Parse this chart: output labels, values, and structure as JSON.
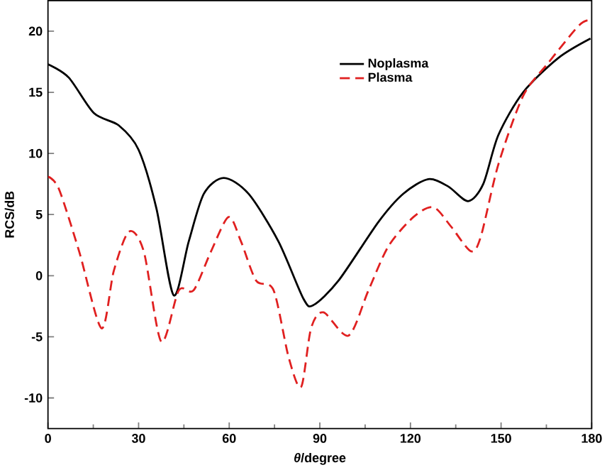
{
  "chart_data": {
    "type": "line",
    "xlabel": "*θ*/degree",
    "ylabel": "RCS/dB",
    "xlim": [
      0,
      180
    ],
    "ylim": [
      -12.5,
      22.5
    ],
    "xticks": [
      0,
      30,
      60,
      90,
      120,
      150,
      180
    ],
    "yticks": [
      -10,
      -5,
      0,
      5,
      10,
      15,
      20
    ],
    "grid": false,
    "legend": "top",
    "marker": "none",
    "series": [
      {
        "name": "Noplasma",
        "color": "#000000",
        "line_style": "solid",
        "x": [
          0,
          6.9,
          15.2,
          23.4,
          30,
          35.9,
          41.6,
          46.6,
          51.6,
          58.2,
          66.4,
          76.3,
          84.6,
          87.9,
          96.2,
          109.4,
          117.6,
          125.9,
          132.5,
          139.1,
          144.1,
          149.1,
          157.3,
          168.9,
          179.6
        ],
        "values": [
          17.3,
          16.2,
          13.3,
          12.3,
          10.3,
          5.5,
          -1.6,
          2.8,
          6.7,
          8.0,
          6.7,
          2.8,
          -1.9,
          -2.4,
          -0.4,
          4.4,
          6.7,
          7.9,
          7.3,
          6.1,
          7.5,
          11.5,
          15.0,
          17.8,
          19.4
        ]
      },
      {
        "name": "Plasma",
        "color": "#e02020",
        "line_style": "dashed",
        "x": [
          0,
          3.6,
          10.3,
          17.7,
          21.8,
          26.8,
          31.7,
          37.5,
          43.3,
          48.2,
          54.0,
          59.8,
          63.9,
          68.9,
          74.7,
          79.7,
          83.8,
          87.1,
          91.2,
          99.5,
          106.1,
          112.7,
          121.0,
          127.6,
          133.5,
          140.0,
          143.3,
          149.1,
          157.3,
          165.6,
          175.5,
          179
        ],
        "values": [
          8.1,
          7.1,
          2.0,
          -4.3,
          0.4,
          3.6,
          2.0,
          -5.4,
          -1.2,
          -1.2,
          2.0,
          4.8,
          2.8,
          -0.4,
          -1.2,
          -6.7,
          -9.1,
          -4.3,
          -3.0,
          -4.9,
          -1.2,
          2.4,
          4.8,
          5.6,
          4.0,
          2.0,
          3.2,
          9.1,
          14.7,
          17.4,
          20.4,
          20.9
        ]
      }
    ]
  }
}
